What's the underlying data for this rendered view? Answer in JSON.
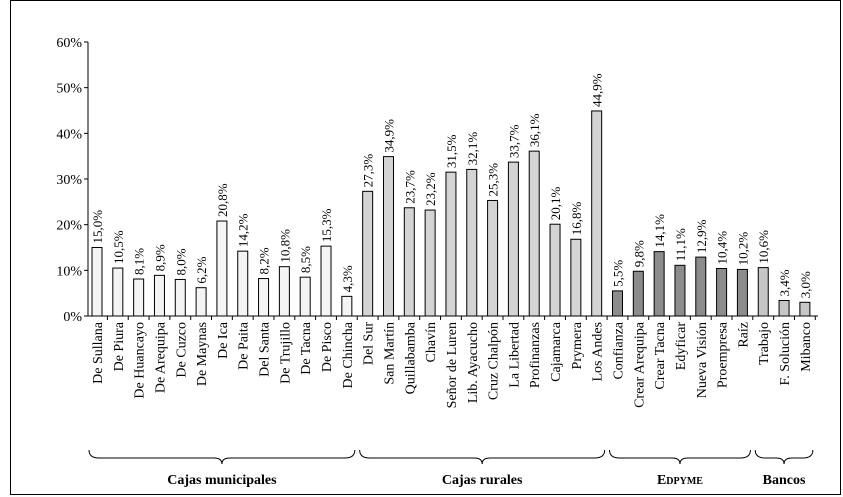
{
  "chart_data": {
    "type": "bar",
    "ylim": [
      0,
      60
    ],
    "yticks": [
      {
        "value": 0,
        "label": "0%"
      },
      {
        "value": 10,
        "label": "10%"
      },
      {
        "value": 20,
        "label": "20%"
      },
      {
        "value": 30,
        "label": "30%"
      },
      {
        "value": 40,
        "label": "40%"
      },
      {
        "value": 50,
        "label": "50%"
      },
      {
        "value": 60,
        "label": "60%"
      }
    ],
    "groups": [
      {
        "name": "Cajas municipales",
        "color": "#f4f4f4",
        "categories": [
          "De Sullana",
          "De Piura",
          "De Huancayo",
          "De Arequipa",
          "De Cuzco",
          "De Maynas",
          "De Ica",
          "De Paita",
          "Del Santa",
          "De Trujillo",
          "De Tacna",
          "De Pisco",
          "De Chincha"
        ],
        "values": [
          15.0,
          10.5,
          8.1,
          8.9,
          8.0,
          6.2,
          20.8,
          14.2,
          8.2,
          10.8,
          8.5,
          15.3,
          4.3
        ],
        "value_labels": [
          "15,0%",
          "10,5%",
          "8,1%",
          "8,9%",
          "8,0%",
          "6,2%",
          "20,8%",
          "14,2%",
          "8,2%",
          "10,8%",
          "8,5%",
          "15,3%",
          "4,3%"
        ]
      },
      {
        "name": "Cajas rurales",
        "color": "#d4d4d4",
        "categories": [
          "Del Sur",
          "San Martín",
          "Quillabamba",
          "Chavín",
          "Señor de Luren",
          "Lib. Ayacucho",
          "Cruz Chalpón",
          "La Libertad",
          "Profinanzas",
          "Cajamarca",
          "Prymera",
          "Los Andes"
        ],
        "values": [
          27.3,
          34.9,
          23.7,
          23.2,
          31.5,
          32.1,
          25.3,
          33.7,
          36.1,
          20.1,
          16.8,
          44.9
        ],
        "value_labels": [
          "27,3%",
          "34,9%",
          "23,7%",
          "23,2%",
          "31,5%",
          "32,1%",
          "25,3%",
          "33,7%",
          "36,1%",
          "20,1%",
          "16,8%",
          "44,9%"
        ]
      },
      {
        "name": "Edpyme",
        "color": "#8c8c8c",
        "categories": [
          "Confianza",
          "Crear Arequipa",
          "Crear Tacna",
          "Edyficar",
          "Nueva Visión",
          "Proempresa",
          "Raíz"
        ],
        "values": [
          5.5,
          9.8,
          14.1,
          11.1,
          12.9,
          10.4,
          10.2
        ],
        "value_labels": [
          "5,5%",
          "9,8%",
          "14,1%",
          "11,1%",
          "12,9%",
          "10,4%",
          "10,2%"
        ]
      },
      {
        "name": "Bancos",
        "color": "#c6c6c6",
        "categories": [
          "Trabajo",
          "F. Solución",
          "Mibanco"
        ],
        "values": [
          10.6,
          3.4,
          3.0
        ],
        "value_labels": [
          "10,6%",
          "3,4%",
          "3,0%"
        ]
      }
    ]
  }
}
